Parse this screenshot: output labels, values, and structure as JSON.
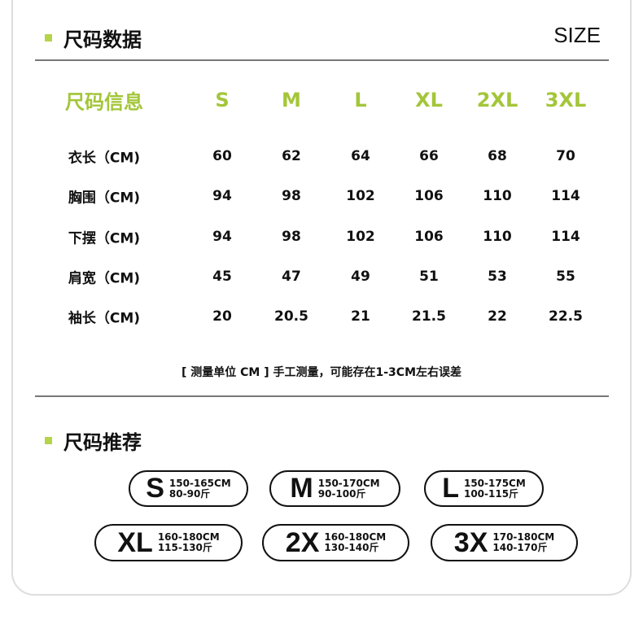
{
  "section1": {
    "title": "尺码数据",
    "size_label": "SIZE"
  },
  "table": {
    "header": [
      "尺码信息",
      "S",
      "M",
      "L",
      "XL",
      "2XL",
      "3XL"
    ],
    "rows": [
      {
        "label": "衣长（CM)",
        "values": [
          "60",
          "62",
          "64",
          "66",
          "68",
          "70"
        ]
      },
      {
        "label": "胸围（CM)",
        "values": [
          "94",
          "98",
          "102",
          "106",
          "110",
          "114"
        ]
      },
      {
        "label": "下摆（CM)",
        "values": [
          "94",
          "98",
          "102",
          "106",
          "110",
          "114"
        ]
      },
      {
        "label": "肩宽（CM)",
        "values": [
          "45",
          "47",
          "49",
          "51",
          "53",
          "55"
        ]
      },
      {
        "label": "袖长（CM)",
        "values": [
          "20",
          "20.5",
          "21",
          "21.5",
          "22",
          "22.5"
        ]
      }
    ]
  },
  "note": "[ 测量单位 CM ] 手工测量，可能存在1-3CM左右误差",
  "section2": {
    "title": "尺码推荐"
  },
  "recommend": [
    {
      "size": "S",
      "height": "150-165CM",
      "weight": "80-90斤"
    },
    {
      "size": "M",
      "height": "150-170CM",
      "weight": "90-100斤"
    },
    {
      "size": "L",
      "height": "150-175CM",
      "weight": "100-115斤"
    },
    {
      "size": "XL",
      "height": "160-180CM",
      "weight": "115-130斤"
    },
    {
      "size": "2X",
      "height": "160-180CM",
      "weight": "130-140斤"
    },
    {
      "size": "3X",
      "height": "170-180CM",
      "weight": "140-170斤"
    }
  ],
  "colors": {
    "accent": "#a3c639",
    "rule": "#777777"
  }
}
